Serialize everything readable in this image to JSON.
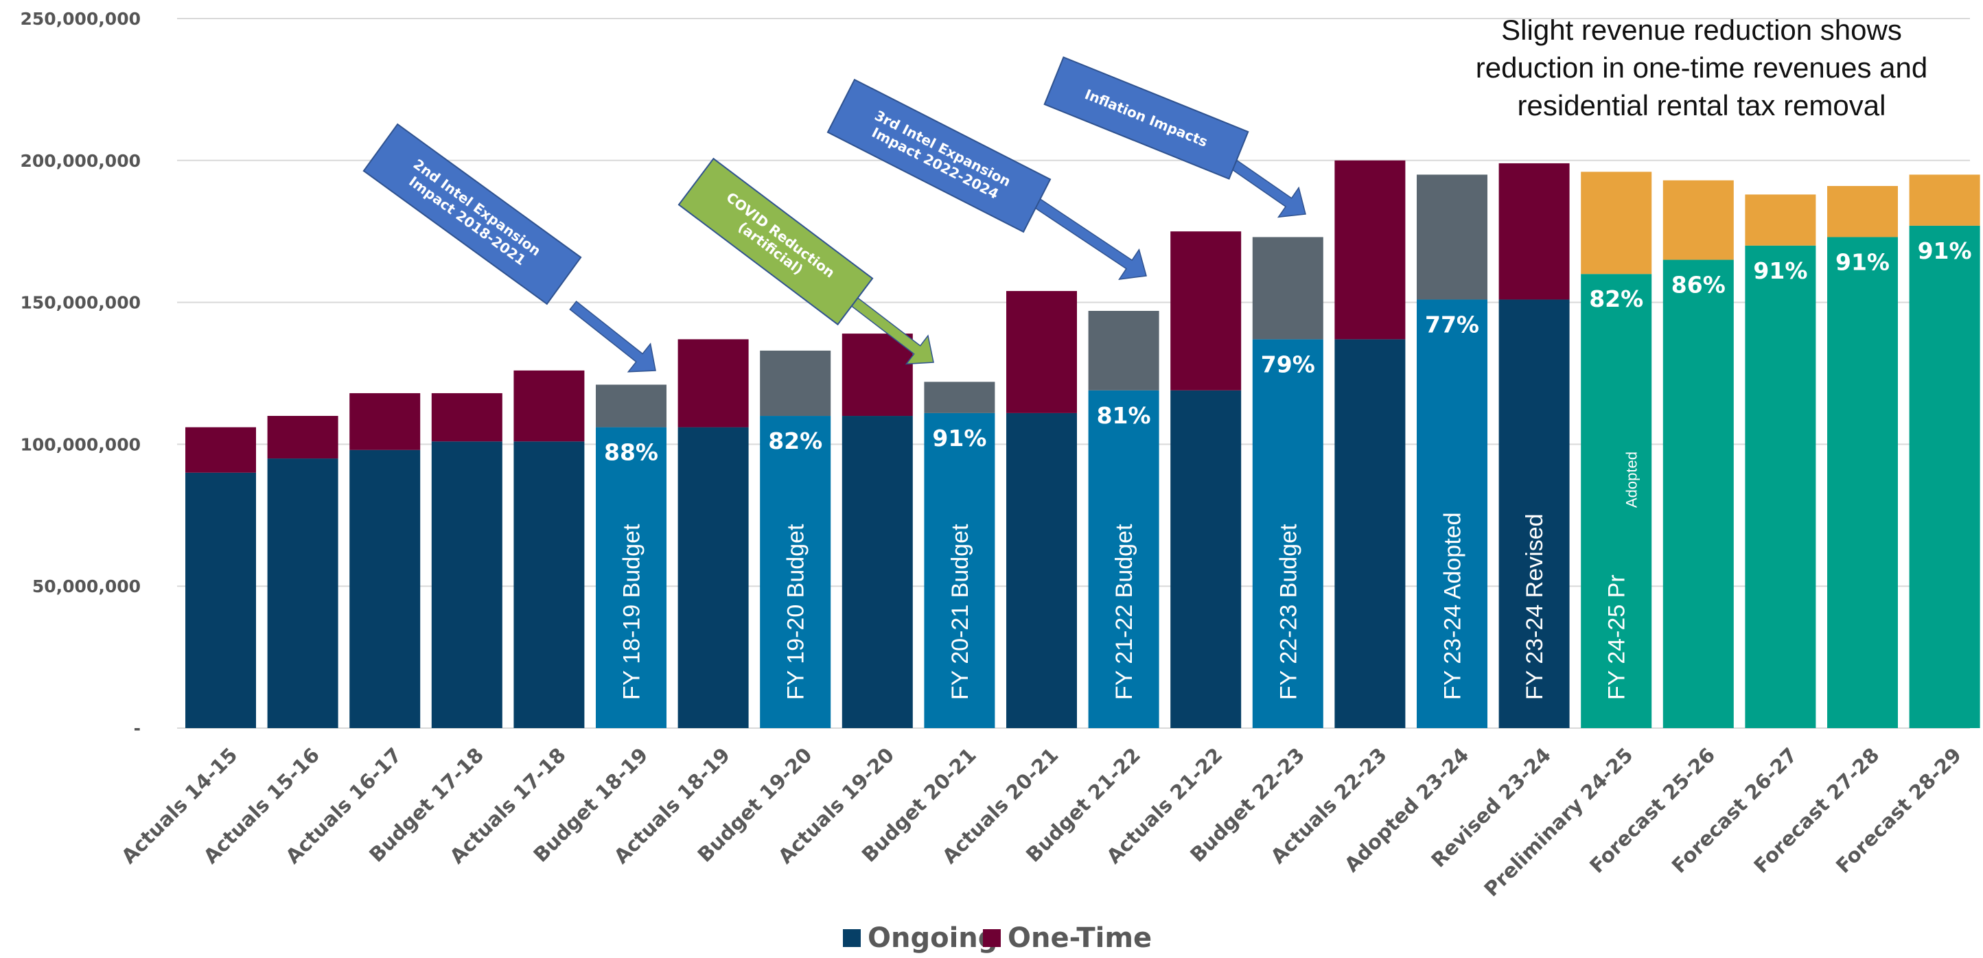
{
  "annotation": {
    "lines": [
      "Slight revenue reduction shows",
      "reduction in one-time revenues and",
      "residential rental tax removal"
    ]
  },
  "legend": [
    {
      "label": "Ongoing",
      "color": "#063f66"
    },
    {
      "label": "One-Time",
      "color": "#6e0033"
    }
  ],
  "callouts": [
    {
      "lines": [
        "2nd Intel Expansion",
        "Impact 2018-2021"
      ],
      "color": "#4472c4"
    },
    {
      "lines": [
        "COVID Reduction",
        "(artificial)"
      ],
      "color": "#8fb84e"
    },
    {
      "lines": [
        "3rd Intel Expansion",
        "Impact  2022-2024"
      ],
      "color": "#4472c4"
    },
    {
      "lines": [
        "Inflation Impacts"
      ],
      "color": "#4472c4"
    }
  ],
  "colors": {
    "ongoing": "#063f66",
    "one_time": "#6e0033",
    "budget_ongoing": "#0074a8",
    "budget_one_time": "#5a6670",
    "forecast_ongoing": "#00a08a",
    "forecast_one_time": "#e8a33d",
    "revised_ongoing": "#063f66",
    "revised_one_time": "#6e0033",
    "grid": "#d9d9d9"
  },
  "chart_data": {
    "type": "bar",
    "stacked": true,
    "ylim": [
      0,
      250000000
    ],
    "yticks": [
      {
        "value": 0,
        "label": "-"
      },
      {
        "value": 50000000,
        "label": "50,000,000"
      },
      {
        "value": 100000000,
        "label": "100,000,000"
      },
      {
        "value": 150000000,
        "label": "150,000,000"
      },
      {
        "value": 200000000,
        "label": "200,000,000"
      },
      {
        "value": 250000000,
        "label": "250,000,000"
      }
    ],
    "grid": true,
    "legend_position": "bottom",
    "categories": [
      "Actuals 14-15",
      "Actuals 15-16",
      "Actuals 16-17",
      "Budget 17-18",
      "Actuals 17-18",
      "Budget 18-19",
      "Actuals 18-19",
      "Budget 19-20",
      "Actuals 19-20",
      "Budget 20-21",
      "Actuals 20-21",
      "Budget 21-22",
      "Actuals 21-22",
      "Budget 22-23",
      "Actuals 22-23",
      "Adopted 23-24",
      "Revised 23-24",
      "Preliminary 24-25",
      "Forecast 25-26",
      "Forecast 26-27",
      "Forecast 27-28",
      "Forecast 28-29"
    ],
    "series": [
      {
        "name": "Ongoing",
        "values": [
          90000000,
          95000000,
          98000000,
          101000000,
          101000000,
          106000000,
          106000000,
          110000000,
          110000000,
          111000000,
          111000000,
          119000000,
          119000000,
          137000000,
          137000000,
          151000000,
          151000000,
          160000000,
          165000000,
          170000000,
          173000000,
          177000000
        ]
      },
      {
        "name": "One-Time",
        "values": [
          16000000,
          15000000,
          20000000,
          17000000,
          25000000,
          15000000,
          31000000,
          23000000,
          29000000,
          11000000,
          43000000,
          28000000,
          56000000,
          36000000,
          63000000,
          44000000,
          48000000,
          36000000,
          28000000,
          18000000,
          18000000,
          18000000
        ]
      }
    ],
    "bar_styles": [
      "actual",
      "actual",
      "actual",
      "actual",
      "actual",
      "budget",
      "actual",
      "budget",
      "actual",
      "budget",
      "actual",
      "budget",
      "actual",
      "budget",
      "actual",
      "budget",
      "revised",
      "forecast",
      "forecast",
      "forecast",
      "forecast",
      "forecast"
    ],
    "percent_labels": [
      "",
      "",
      "",
      "",
      "",
      "88%",
      "",
      "82%",
      "",
      "91%",
      "",
      "81%",
      "",
      "79%",
      "",
      "77%",
      "",
      "82%",
      "86%",
      "91%",
      "91%",
      "91%"
    ],
    "bar_labels": [
      "",
      "",
      "",
      "",
      "",
      "FY 18-19 Budget",
      "",
      "FY 19-20 Budget",
      "",
      "FY 20-21 Budget",
      "",
      "FY 21-22 Budget",
      "",
      "FY 22-23 Budget",
      "",
      "FY 23-24  Adopted",
      "FY 23-24 Revised",
      "FY 24-25 Pr",
      "",
      "",
      "",
      ""
    ],
    "bar_sublabels": [
      "",
      "",
      "",
      "",
      "",
      "",
      "",
      "",
      "",
      "",
      "",
      "",
      "",
      "",
      "",
      "",
      "",
      "Adopted",
      "",
      "",
      "",
      ""
    ]
  }
}
